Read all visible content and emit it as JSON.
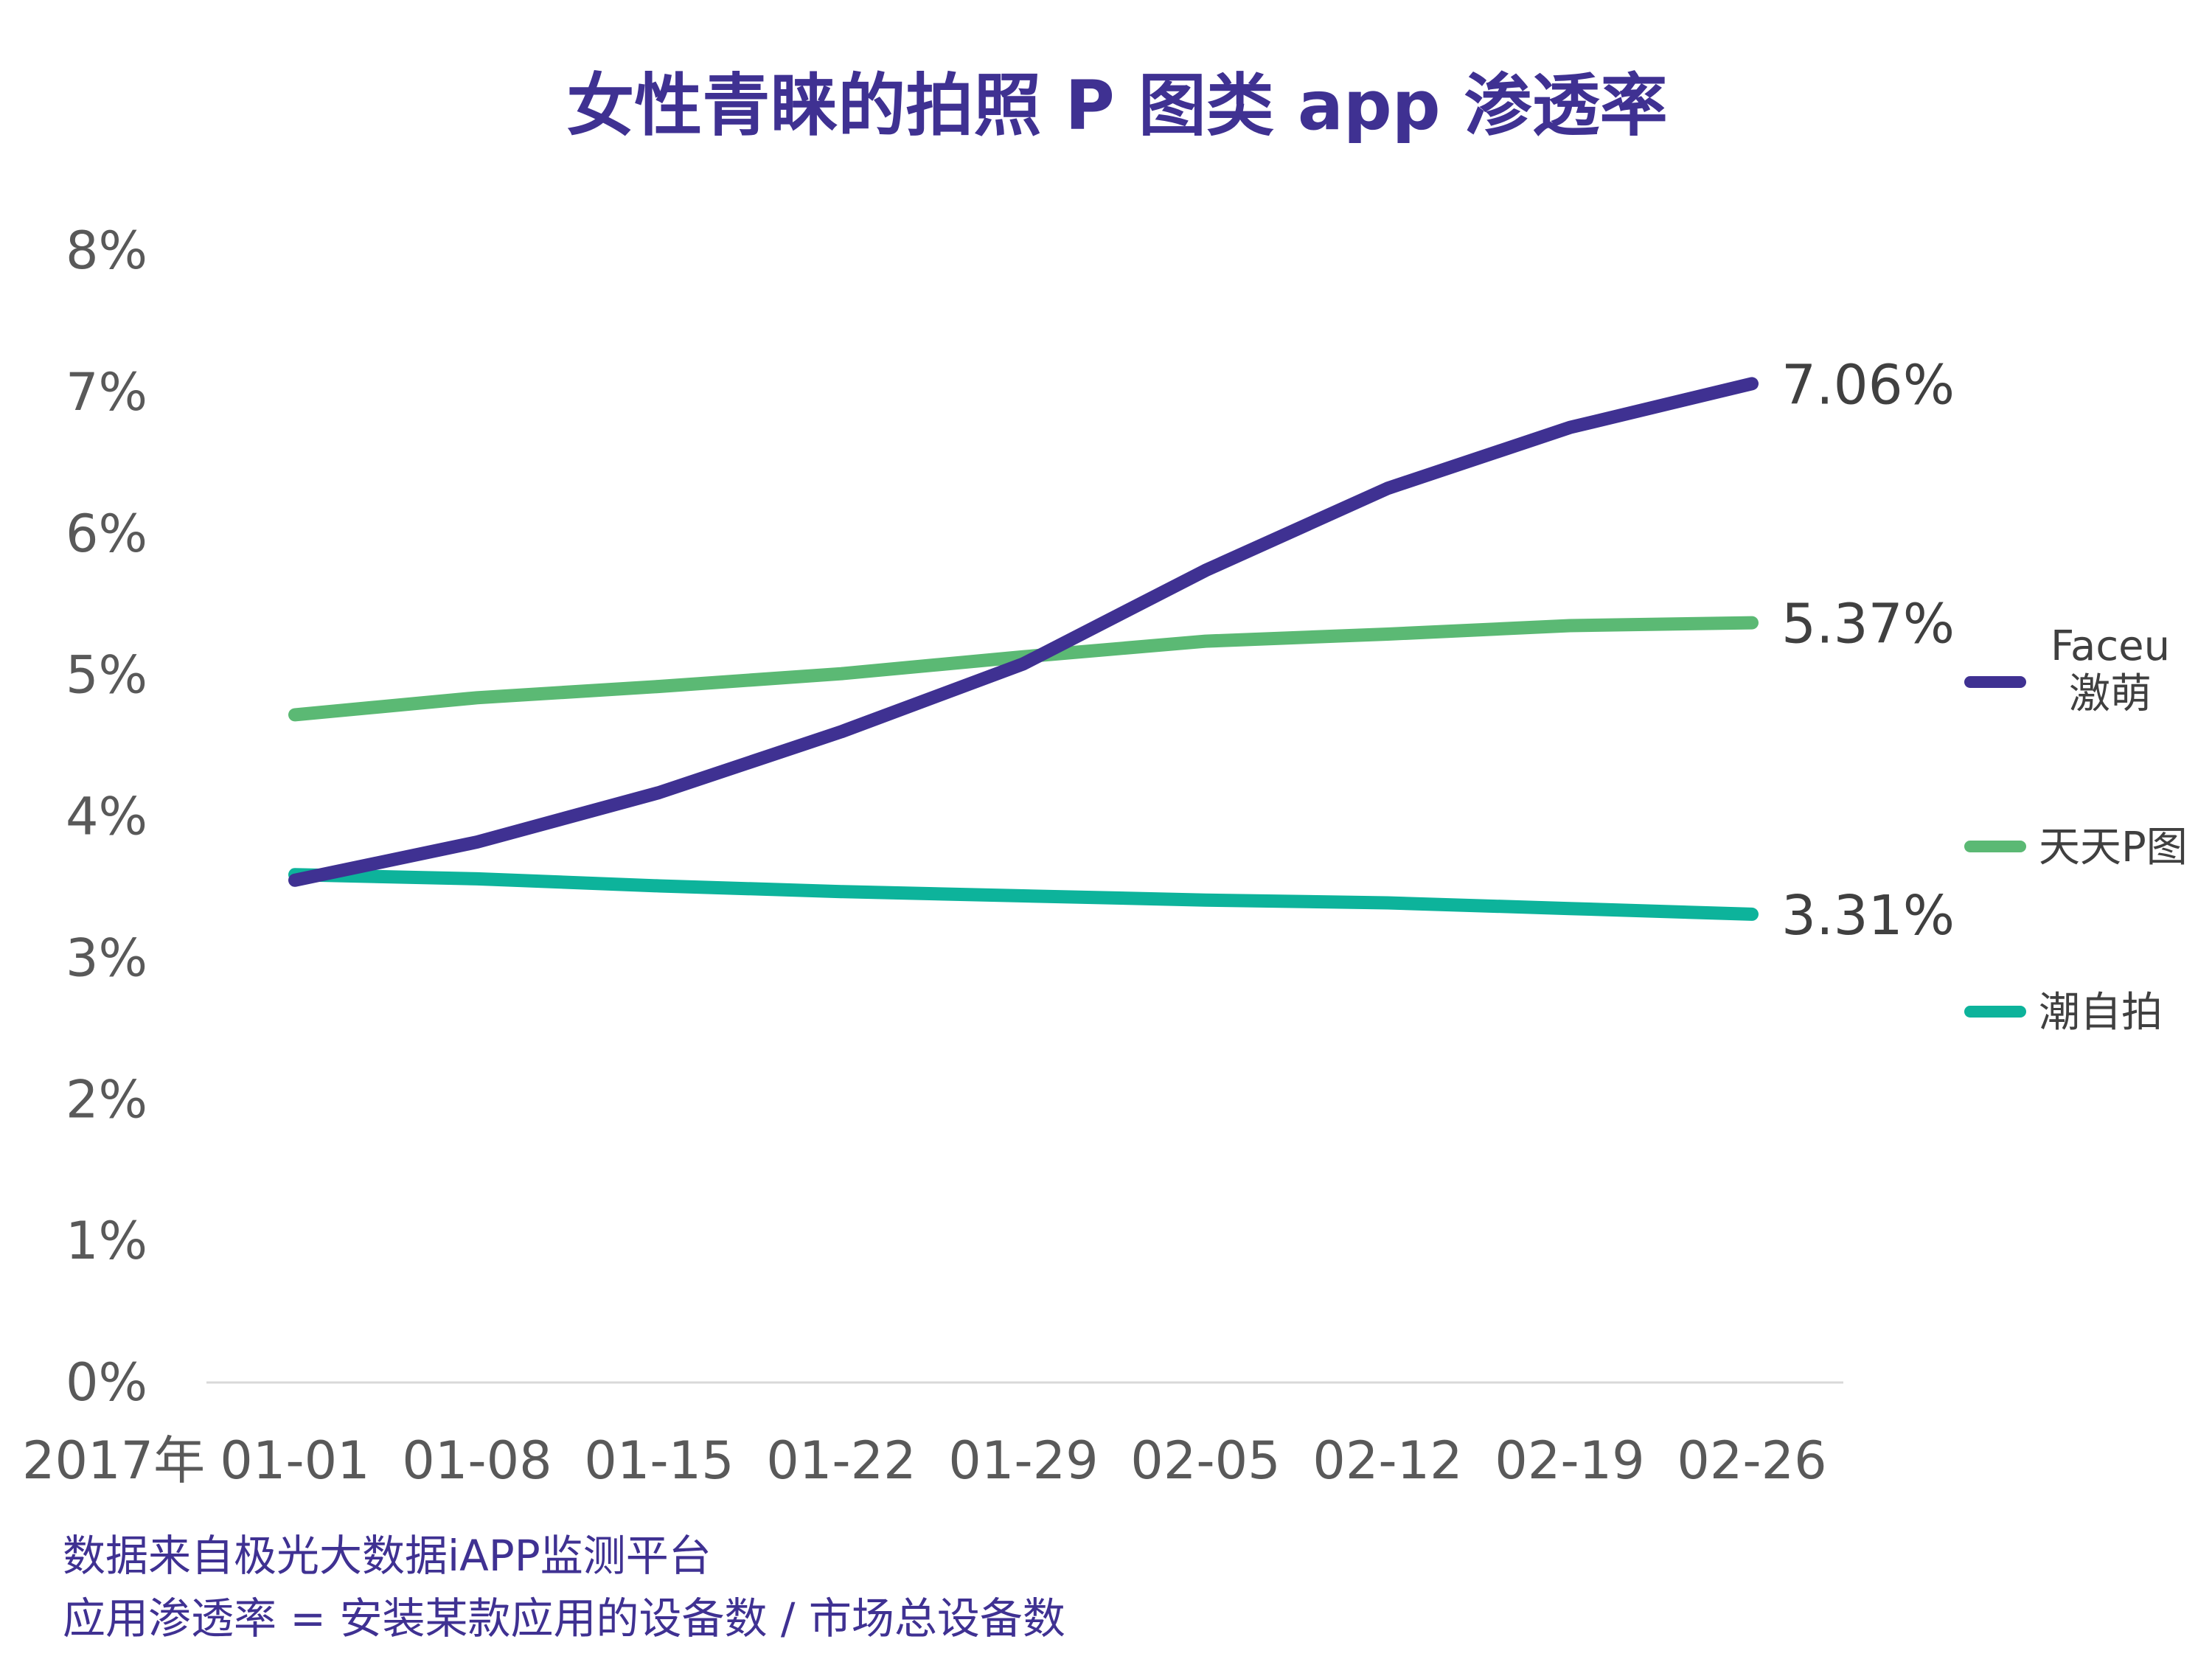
{
  "colors": {
    "title": "#3f3192",
    "axis_text": "#595959",
    "axis_line": "#d9d9d9",
    "label_text": "#404040",
    "footnote": "#3f3192"
  },
  "footnotes": [
    "数据来自极光大数据iAPP监测平台",
    "应用渗透率 = 安装某款应用的设备数 / 市场总设备数"
  ],
  "chart_data": {
    "type": "line",
    "title": "女性青睐的拍照 P 图类 app 渗透率",
    "x_axis_prefix": "2017年",
    "categories": [
      "01-01",
      "01-08",
      "01-15",
      "01-22",
      "01-29",
      "02-05",
      "02-12",
      "02-19",
      "02-26"
    ],
    "y_ticks": [
      "0%",
      "1%",
      "2%",
      "3%",
      "4%",
      "5%",
      "6%",
      "7%",
      "8%"
    ],
    "ylim": [
      0,
      8
    ],
    "grid": false,
    "legend_position": "right",
    "series": [
      {
        "name": "Faceu\n激萌",
        "color": "#3f3192",
        "values": [
          3.55,
          3.82,
          4.17,
          4.6,
          5.08,
          5.74,
          6.32,
          6.75,
          7.06
        ],
        "end_label": "7.06%"
      },
      {
        "name": "天天P图",
        "color": "#5bb974",
        "values": [
          4.72,
          4.84,
          4.92,
          5.01,
          5.13,
          5.24,
          5.29,
          5.35,
          5.37
        ],
        "end_label": "5.37%"
      },
      {
        "name": "潮自拍",
        "color": "#0db39b",
        "values": [
          3.59,
          3.56,
          3.51,
          3.47,
          3.44,
          3.41,
          3.39,
          3.35,
          3.31
        ],
        "end_label": "3.31%"
      }
    ]
  }
}
